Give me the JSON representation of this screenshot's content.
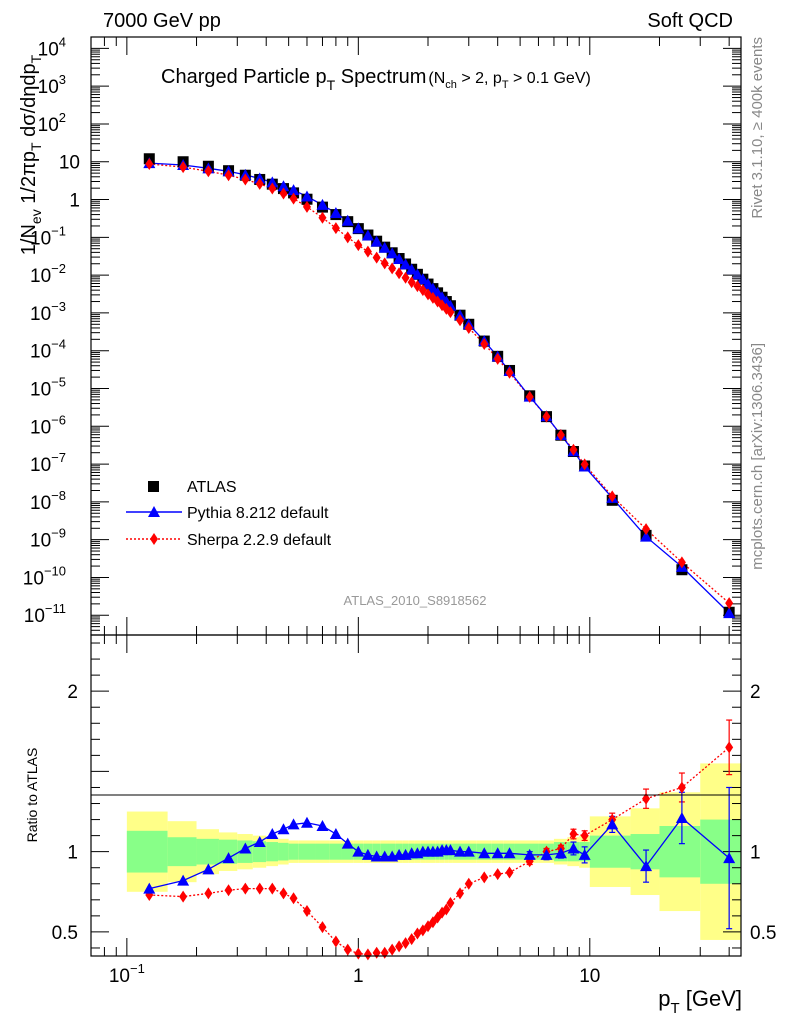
{
  "header": {
    "left": "7000 GeV pp",
    "right": "Soft QCD"
  },
  "side_labels": {
    "rivet": "Rivet 3.1.10, ≥ 400k events",
    "mcplots": "mcplots.cern.ch [arXiv:1306.3436]"
  },
  "title": {
    "main": "Charged Particle p",
    "main_sub": "T",
    "main_tail": " Spectrum",
    "cut": "(N",
    "cut_sub1": "ch",
    "cut_mid": " > 2, p",
    "cut_sub2": "T",
    "cut_tail": " > 0.1 GeV)"
  },
  "analysis_id": "ATLAS_2010_S8918562",
  "colors": {
    "data": "#000000",
    "pythia": "#0000ff",
    "sherpa": "#ff0000",
    "band_inner": "#88ff88",
    "band_outer": "#ffff88"
  },
  "chart_data": [
    {
      "type": "scatter",
      "panel": "main",
      "ylabel": "1/N_ev 1/2πp_T dσ/dηdp_T",
      "xscale": "log",
      "yscale": "log",
      "xlim": [
        0.07,
        45
      ],
      "ylim": [
        3e-12,
        20000
      ],
      "y_ticks": [
        {
          "v": 1e-11,
          "base": "10",
          "exp": "−11"
        },
        {
          "v": 1e-10,
          "base": "10",
          "exp": "−10"
        },
        {
          "v": 1e-09,
          "base": "10",
          "exp": "−9"
        },
        {
          "v": 1e-08,
          "base": "10",
          "exp": "−8"
        },
        {
          "v": 1e-07,
          "base": "10",
          "exp": "−7"
        },
        {
          "v": 1e-06,
          "base": "10",
          "exp": "−6"
        },
        {
          "v": 1e-05,
          "base": "10",
          "exp": "−5"
        },
        {
          "v": 0.0001,
          "base": "10",
          "exp": "−4"
        },
        {
          "v": 0.001,
          "base": "10",
          "exp": "−3"
        },
        {
          "v": 0.01,
          "base": "10",
          "exp": "−2"
        },
        {
          "v": 0.1,
          "base": "10",
          "exp": "−1"
        },
        {
          "v": 1,
          "base": "1",
          "exp": ""
        },
        {
          "v": 10,
          "base": "10",
          "exp": ""
        },
        {
          "v": 100,
          "base": "10",
          "exp": "2"
        },
        {
          "v": 1000,
          "base": "10",
          "exp": "3"
        },
        {
          "v": 10000,
          "base": "10",
          "exp": "4"
        }
      ],
      "legend": [
        "ATLAS",
        "Pythia 8.212 default",
        "Sherpa 2.2.9 default"
      ],
      "legend_position": "bottom-left",
      "x": [
        0.125,
        0.175,
        0.225,
        0.275,
        0.325,
        0.375,
        0.425,
        0.475,
        0.525,
        0.6,
        0.7,
        0.8,
        0.9,
        1.0,
        1.1,
        1.2,
        1.3,
        1.4,
        1.5,
        1.6,
        1.7,
        1.8,
        1.9,
        2.0,
        2.1,
        2.2,
        2.3,
        2.4,
        2.5,
        2.75,
        3.0,
        3.5,
        4.0,
        4.5,
        5.5,
        6.5,
        7.5,
        8.5,
        9.5,
        12.5,
        17.5,
        25,
        40
      ],
      "series": [
        {
          "name": "ATLAS",
          "values": [
            12,
            10,
            7.6,
            5.8,
            4.4,
            3.4,
            2.55,
            1.95,
            1.5,
            1.02,
            0.63,
            0.4,
            0.26,
            0.17,
            0.115,
            0.079,
            0.055,
            0.039,
            0.0275,
            0.0197,
            0.0143,
            0.0105,
            0.0078,
            0.0058,
            0.0044,
            0.0034,
            0.0026,
            0.002,
            0.00155,
            0.00087,
            0.0005,
            0.00018,
            7.1e-05,
            3e-05,
            6.4e-06,
            1.8e-06,
            5.8e-07,
            2.15e-07,
            8.9e-08,
            1.1e-08,
            1.3e-09,
            1.6e-10,
            1.2e-11
          ]
        },
        {
          "name": "Pythia 8.212 default",
          "values": [
            9.2,
            8.2,
            6.7,
            5.6,
            4.5,
            3.6,
            2.85,
            2.25,
            1.77,
            1.2,
            0.72,
            0.44,
            0.275,
            0.172,
            0.112,
            0.077,
            0.053,
            0.038,
            0.0268,
            0.0193,
            0.0141,
            0.0104,
            0.0078,
            0.0058,
            0.0044,
            0.0034,
            0.0026,
            0.002,
            0.00155,
            0.00087,
            0.0005,
            0.00018,
            7e-05,
            2.9e-05,
            6.1e-06,
            1.84e-06,
            5.9e-07,
            2.18e-07,
            8.6e-08,
            1.28e-08,
            1.2e-09,
            1.9e-10,
            1.14e-11
          ]
        },
        {
          "name": "Sherpa 2.2.9 default",
          "values": [
            8.7,
            7.2,
            5.6,
            4.4,
            3.4,
            2.6,
            1.96,
            1.45,
            1.06,
            0.64,
            0.33,
            0.175,
            0.1,
            0.062,
            0.042,
            0.029,
            0.0205,
            0.0151,
            0.0112,
            0.0085,
            0.0065,
            0.0051,
            0.004,
            0.0031,
            0.0025,
            0.002,
            0.0016,
            0.00128,
            0.00105,
            0.00064,
            0.0004,
            0.00015,
            6.1e-05,
            2.6e-05,
            6e-06,
            1.8e-06,
            5.9e-07,
            2.4e-07,
            9.8e-08,
            1.4e-08,
            1.9e-09,
            2.5e-10,
            2.1e-11
          ]
        }
      ]
    },
    {
      "type": "line",
      "panel": "ratio",
      "ylabel": "Ratio to ATLAS",
      "xlabel": "p_T [GeV]",
      "xlim": [
        0.07,
        45
      ],
      "ylim": [
        0.35,
        2.35
      ],
      "y_ticks": [
        "0.5",
        "1",
        "2"
      ],
      "x_ticks": [
        {
          "v": 0.1,
          "base": "10",
          "exp": "−1"
        },
        {
          "v": 1,
          "base": "1",
          "exp": ""
        },
        {
          "v": 10,
          "base": "10",
          "exp": ""
        }
      ],
      "band_edges": [
        0.1,
        0.15,
        0.2,
        0.25,
        0.3,
        0.35,
        0.4,
        0.45,
        0.5,
        0.55,
        0.65,
        0.75,
        0.85,
        0.95,
        1.05,
        1.15,
        1.25,
        1.35,
        1.45,
        1.55,
        1.65,
        1.75,
        1.85,
        1.95,
        2.05,
        2.15,
        2.25,
        2.35,
        2.45,
        2.55,
        2.875,
        3.25,
        3.75,
        4.25,
        4.75,
        6,
        7,
        8,
        9,
        10,
        15,
        20,
        30,
        50
      ],
      "band_inner": [
        0.13,
        0.09,
        0.08,
        0.075,
        0.07,
        0.065,
        0.06,
        0.055,
        0.05,
        0.05,
        0.05,
        0.05,
        0.05,
        0.05,
        0.05,
        0.05,
        0.05,
        0.05,
        0.05,
        0.05,
        0.05,
        0.05,
        0.05,
        0.05,
        0.05,
        0.05,
        0.05,
        0.05,
        0.05,
        0.05,
        0.05,
        0.05,
        0.05,
        0.05,
        0.05,
        0.05,
        0.06,
        0.06,
        0.06,
        0.1,
        0.11,
        0.16,
        0.2
      ],
      "band_outer": [
        0.25,
        0.19,
        0.14,
        0.12,
        0.11,
        0.1,
        0.09,
        0.08,
        0.07,
        0.07,
        0.07,
        0.07,
        0.07,
        0.07,
        0.07,
        0.07,
        0.07,
        0.07,
        0.07,
        0.07,
        0.07,
        0.07,
        0.07,
        0.07,
        0.07,
        0.07,
        0.07,
        0.07,
        0.07,
        0.07,
        0.07,
        0.07,
        0.07,
        0.07,
        0.07,
        0.07,
        0.08,
        0.09,
        0.1,
        0.22,
        0.27,
        0.37,
        0.55
      ],
      "x": [
        0.125,
        0.175,
        0.225,
        0.275,
        0.325,
        0.375,
        0.425,
        0.475,
        0.525,
        0.6,
        0.7,
        0.8,
        0.9,
        1.0,
        1.1,
        1.2,
        1.3,
        1.4,
        1.5,
        1.6,
        1.7,
        1.8,
        1.9,
        2.0,
        2.1,
        2.2,
        2.3,
        2.4,
        2.5,
        2.75,
        3.0,
        3.5,
        4.0,
        4.5,
        5.5,
        6.5,
        7.5,
        8.5,
        9.5,
        12.5,
        17.5,
        25,
        40
      ],
      "series": [
        {
          "name": "Pythia 8.212 default",
          "values": [
            0.77,
            0.82,
            0.89,
            0.96,
            1.02,
            1.06,
            1.11,
            1.14,
            1.17,
            1.18,
            1.16,
            1.11,
            1.05,
            1.0,
            0.98,
            0.97,
            0.97,
            0.97,
            0.98,
            0.98,
            0.99,
            0.99,
            1.0,
            1.0,
            1.0,
            1.0,
            1.01,
            1.01,
            1.01,
            1.0,
            1.0,
            0.99,
            0.99,
            0.99,
            0.98,
            0.98,
            0.99,
            1.02,
            0.98,
            1.17,
            0.91,
            1.21,
            0.96
          ],
          "err": [
            0.005,
            0.005,
            0.005,
            0.005,
            0.005,
            0.005,
            0.005,
            0.005,
            0.005,
            0.005,
            0.005,
            0.005,
            0.005,
            0.005,
            0.005,
            0.005,
            0.005,
            0.005,
            0.005,
            0.005,
            0.005,
            0.005,
            0.005,
            0.005,
            0.005,
            0.005,
            0.005,
            0.005,
            0.005,
            0.005,
            0.005,
            0.01,
            0.01,
            0.01,
            0.02,
            0.03,
            0.03,
            0.04,
            0.05,
            0.05,
            0.1,
            0.16,
            0.44
          ]
        },
        {
          "name": "Sherpa 2.2.9 default",
          "values": [
            0.73,
            0.72,
            0.74,
            0.76,
            0.77,
            0.77,
            0.77,
            0.74,
            0.71,
            0.63,
            0.53,
            0.44,
            0.39,
            0.365,
            0.36,
            0.37,
            0.37,
            0.39,
            0.41,
            0.43,
            0.455,
            0.49,
            0.51,
            0.535,
            0.56,
            0.59,
            0.62,
            0.64,
            0.68,
            0.74,
            0.8,
            0.84,
            0.86,
            0.87,
            0.94,
            1.0,
            1.02,
            1.11,
            1.1,
            1.2,
            1.33,
            1.4,
            1.65
          ],
          "err": [
            0.005,
            0.005,
            0.005,
            0.005,
            0.005,
            0.005,
            0.005,
            0.005,
            0.005,
            0.005,
            0.005,
            0.005,
            0.005,
            0.005,
            0.005,
            0.005,
            0.005,
            0.005,
            0.005,
            0.005,
            0.005,
            0.005,
            0.005,
            0.005,
            0.005,
            0.005,
            0.005,
            0.005,
            0.005,
            0.005,
            0.005,
            0.01,
            0.01,
            0.01,
            0.02,
            0.02,
            0.02,
            0.03,
            0.03,
            0.04,
            0.06,
            0.09,
            0.17
          ]
        }
      ]
    }
  ]
}
